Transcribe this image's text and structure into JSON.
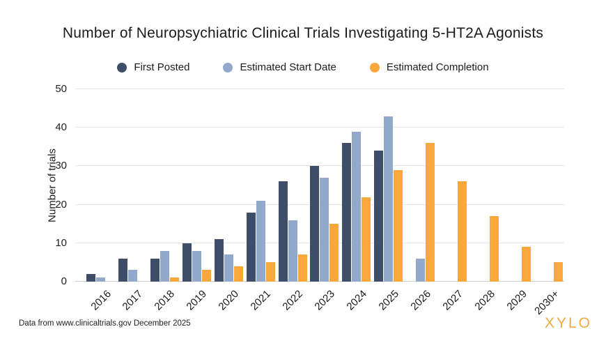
{
  "title": "Number of Neuropsychiatric Clinical Trials Investigating 5-HT2A Agonists",
  "colors": {
    "first_posted": "#3E4D68",
    "estimated_start": "#92A9CB",
    "estimated_completion": "#FAA83B",
    "gridline": "#e6e6e6",
    "baseline": "#c9c9c9",
    "brand": "#efaa45"
  },
  "footer": {
    "source": "Data from www.clinicaltrials.gov December 2025",
    "brand": "XYLO"
  },
  "chart_data": {
    "type": "bar",
    "title": "Number of Neuropsychiatric Clinical Trials Investigating 5-HT2A Agonists",
    "xlabel": "",
    "ylabel": "Number of trials",
    "ylim": [
      0,
      50
    ],
    "yticks": [
      0,
      10,
      20,
      30,
      40,
      50
    ],
    "grid": true,
    "legend_position": "top-center",
    "categories": [
      "2016",
      "2017",
      "2018",
      "2019",
      "2020",
      "2021",
      "2022",
      "2023",
      "2024",
      "2025",
      "2026",
      "2027",
      "2028",
      "2029",
      "2030+"
    ],
    "series": [
      {
        "name": "First Posted",
        "color": "#3E4D68",
        "values": [
          2,
          6,
          6,
          10,
          11,
          18,
          26,
          30,
          36,
          34,
          null,
          null,
          null,
          null,
          null
        ]
      },
      {
        "name": "Estimated Start Date",
        "color": "#92A9CB",
        "values": [
          1,
          3,
          8,
          8,
          7,
          21,
          16,
          27,
          39,
          43,
          6,
          null,
          null,
          null,
          null
        ]
      },
      {
        "name": "Estimated Completion",
        "color": "#FAA83B",
        "values": [
          null,
          null,
          1,
          3,
          4,
          5,
          7,
          15,
          22,
          29,
          36,
          26,
          17,
          9,
          5
        ]
      }
    ]
  }
}
